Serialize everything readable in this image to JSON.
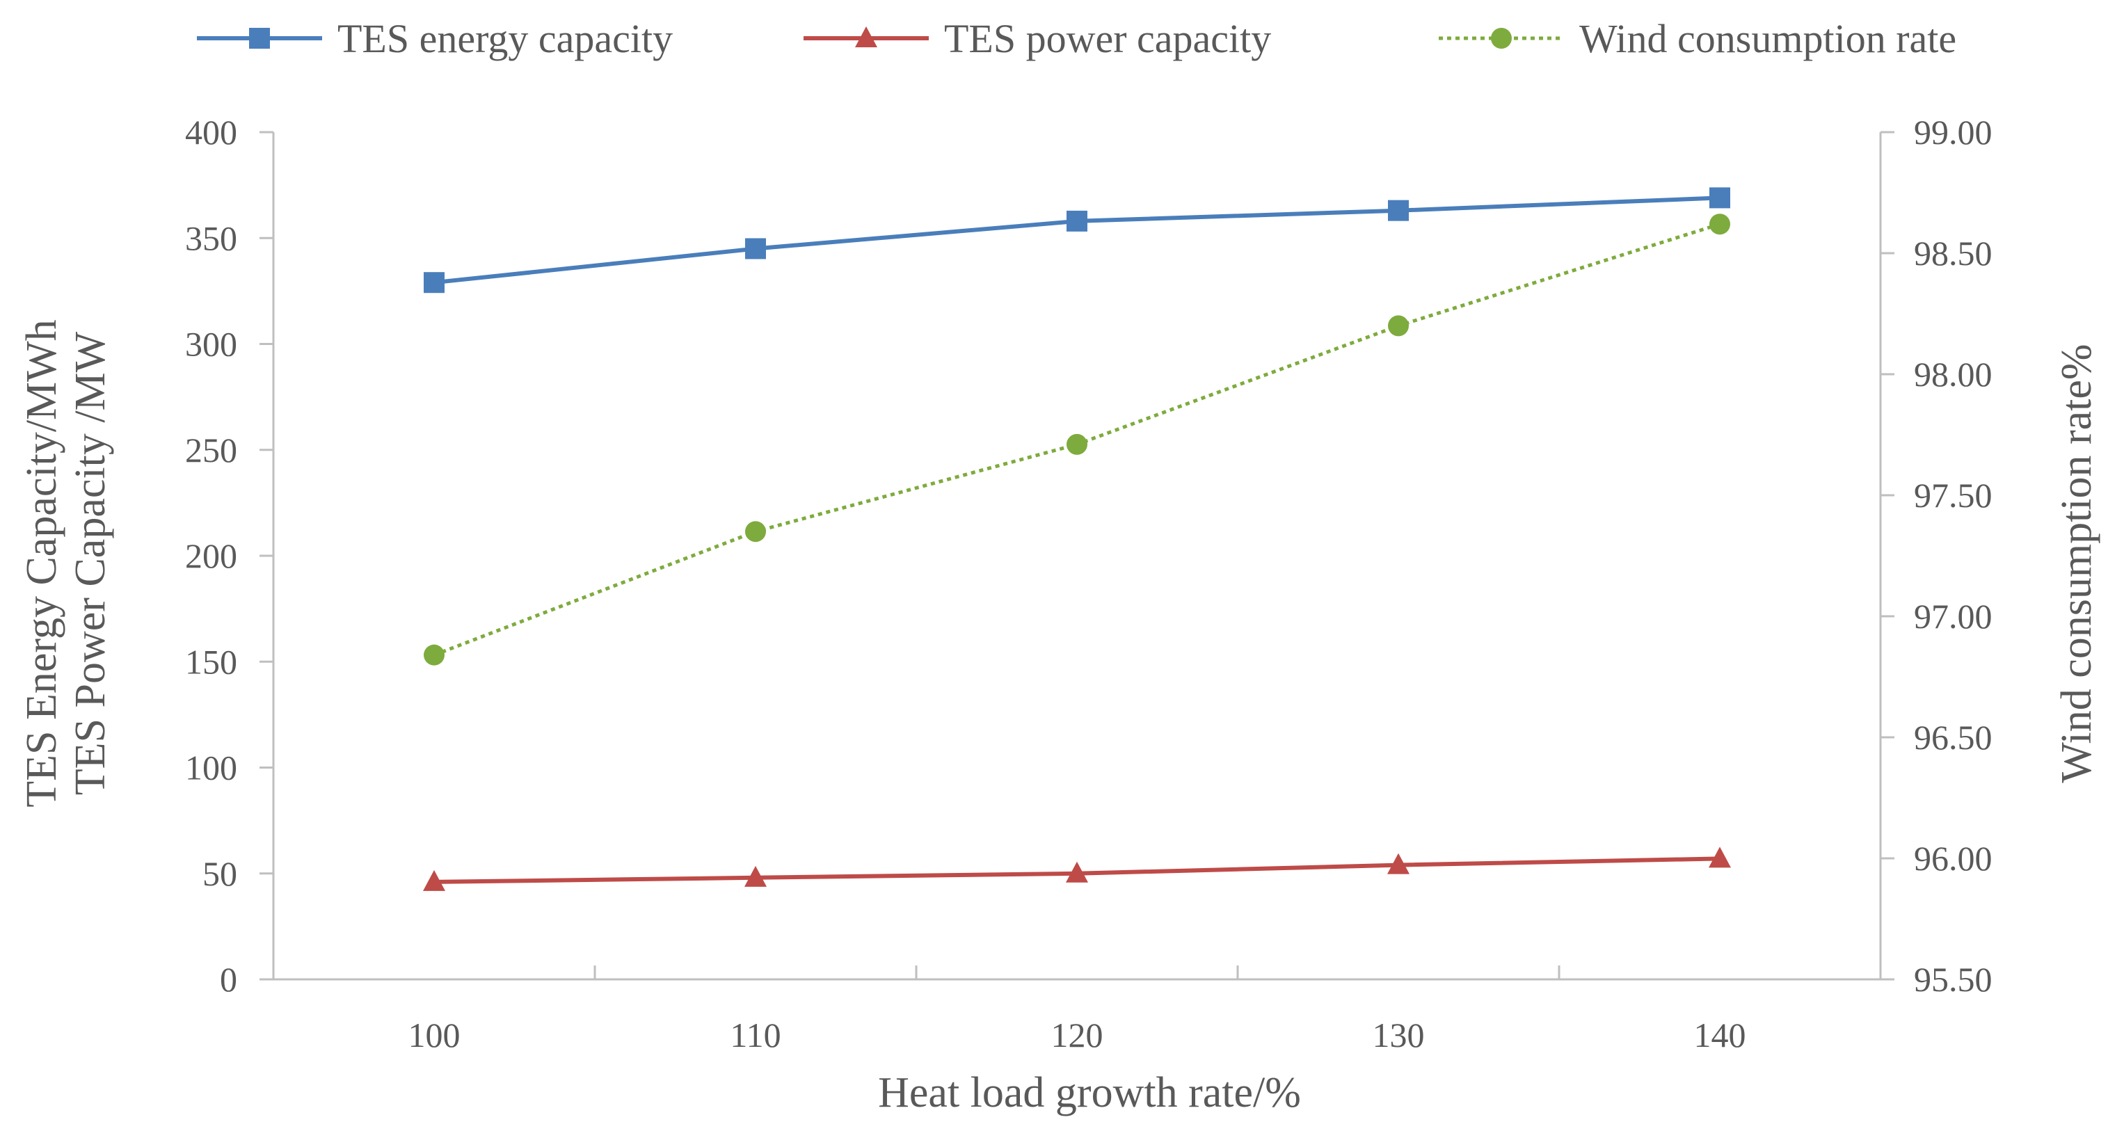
{
  "chart_data": {
    "type": "line",
    "title": "",
    "xlabel": "Heat load growth rate/%",
    "ylabel_left": [
      "TES Energy Capacity/MWh",
      "TES Power Capacity /MW"
    ],
    "ylabel_right": "Wind consumption rate%",
    "categories": [
      "100",
      "110",
      "120",
      "130",
      "140"
    ],
    "x_ticks_count": 5,
    "y_left_lim": [
      0,
      400
    ],
    "y_left_ticks": [
      "0",
      "50",
      "100",
      "150",
      "200",
      "250",
      "300",
      "350",
      "400"
    ],
    "y_right_lim": [
      95.5,
      99.0
    ],
    "y_right_ticks": [
      "95.50",
      "96.00",
      "96.50",
      "97.00",
      "97.50",
      "98.00",
      "98.50",
      "99.00"
    ],
    "grid": false,
    "legend_position": "top",
    "series": [
      {
        "name": "TES energy capacity",
        "axis": "left",
        "marker": "square",
        "line": "solid",
        "color": "#4a7ebb",
        "values": [
          329,
          345,
          358,
          363,
          369
        ]
      },
      {
        "name": "TES power capacity",
        "axis": "left",
        "marker": "triangle",
        "line": "solid",
        "color": "#be4b48",
        "values": [
          46,
          48,
          50,
          54,
          57
        ]
      },
      {
        "name": "Wind consumption rate",
        "axis": "right",
        "marker": "circle",
        "line": "dotted",
        "color": "#7eab3d",
        "values": [
          96.84,
          97.35,
          97.71,
          98.2,
          98.62
        ]
      }
    ],
    "axis_color": "#bfbfbf"
  }
}
